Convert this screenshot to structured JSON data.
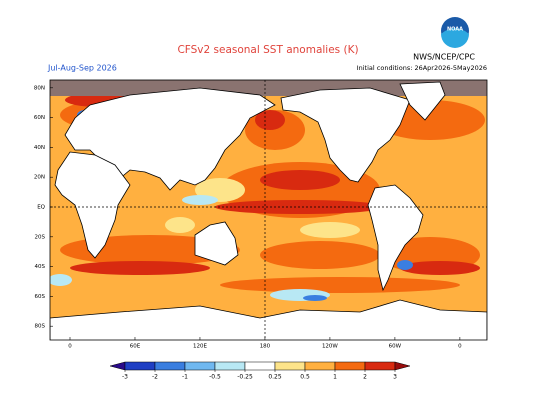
{
  "header": {
    "title": "CFSv2 seasonal SST anomalies (K)",
    "season": "Jul-Aug-Sep 2026",
    "initial": "Initial conditions: 26Apr2026-5May2026",
    "agency": "NWS/NCEP/CPC",
    "logo": "NOAA"
  },
  "map": {
    "lat_labels": [
      {
        "value": 80,
        "label": "80N"
      },
      {
        "value": 60,
        "label": "60N"
      },
      {
        "value": 40,
        "label": "40N"
      },
      {
        "value": 20,
        "label": "20N"
      },
      {
        "value": 0,
        "label": "EQ"
      },
      {
        "value": -20,
        "label": "20S"
      },
      {
        "value": -40,
        "label": "40S"
      },
      {
        "value": -60,
        "label": "60S"
      },
      {
        "value": -80,
        "label": "80S"
      }
    ],
    "lon_labels": [
      0,
      {
        "value": 60,
        "label": "60E"
      },
      {
        "value": 120,
        "label": "120E"
      },
      180,
      {
        "value": 240,
        "label": "120W"
      },
      {
        "value": 300,
        "label": "60W"
      },
      {
        "value": 360,
        "label": "0"
      }
    ]
  },
  "colorbar": {
    "ticks": [
      -3,
      -2,
      -1,
      -0.5,
      -0.25,
      0.25,
      0.5,
      1,
      2,
      3
    ],
    "colors": [
      "#2a0a8a",
      "#1f3fc4",
      "#3a7ee0",
      "#70b8f0",
      "#b8e8f4",
      "#ffffff",
      "#fde48a",
      "#ffb040",
      "#f46a10",
      "#d82a10",
      "#980c0c"
    ]
  }
}
